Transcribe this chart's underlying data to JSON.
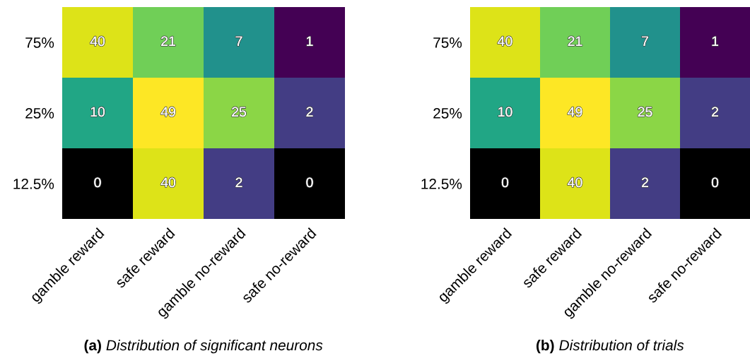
{
  "chart_data": [
    {
      "type": "heatmap",
      "data_labels": true,
      "title": "(a) Distribution of significant neurons",
      "categories": [
        "gamble reward",
        "safe reward",
        "gamble no-reward",
        "safe no-reward"
      ],
      "y_categories": [
        "75%",
        "25%",
        "12.5%"
      ],
      "cells": [
        [
          40,
          21,
          7,
          1
        ],
        [
          10,
          49,
          25,
          2
        ],
        [
          0,
          40,
          2,
          0
        ]
      ]
    },
    {
      "type": "heatmap",
      "data_labels": true,
      "title": "(b) Distribution of trials",
      "categories": [
        "gamble reward",
        "safe reward",
        "gamble no-reward",
        "safe no-reward"
      ],
      "y_categories": [
        "75%",
        "25%",
        "12.5%"
      ],
      "cells": [
        [
          40,
          21,
          7,
          1
        ],
        [
          10,
          49,
          25,
          2
        ],
        [
          0,
          40,
          2,
          0
        ]
      ]
    }
  ]
}
